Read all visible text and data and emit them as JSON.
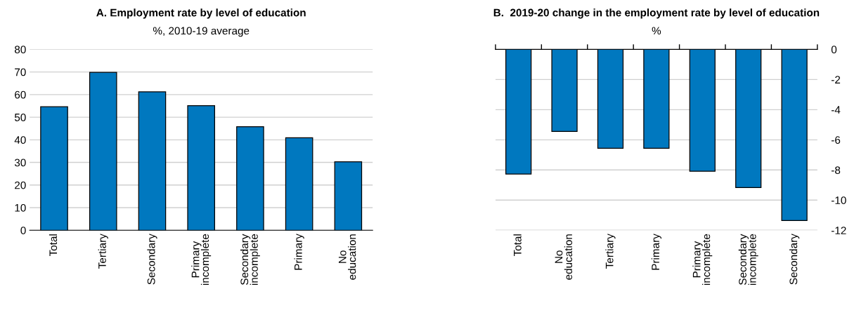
{
  "chart_data": [
    {
      "type": "bar",
      "title": "A. Employment rate by level of education",
      "subtitle": "%, 2010-19 average",
      "categories": [
        "Total",
        "Tertiary",
        "Secondary",
        "Primary\nincomplete",
        "Secondary\nincomplete",
        "Primary",
        "No\neducation"
      ],
      "values": [
        54.6,
        69.8,
        61.2,
        55.1,
        45.8,
        40.9,
        30.3
      ],
      "color": "#0078bf",
      "ylim": [
        0,
        80
      ],
      "yticks": [
        0,
        10,
        20,
        30,
        40,
        50,
        60,
        70,
        80
      ],
      "grid": "y"
    },
    {
      "type": "bar",
      "title": "B.  2019-20 change in the employment rate by level of education",
      "subtitle": "%",
      "categories": [
        "Total",
        "No\neducation",
        "Tertiary",
        "Primary",
        "Primary\nincomplete",
        "Secondary\nincomplete",
        "Secondary"
      ],
      "values": [
        -8.27,
        -5.44,
        -6.56,
        -6.56,
        -8.08,
        -9.17,
        -11.35
      ],
      "color": "#0078bf",
      "ylim": [
        -12,
        0
      ],
      "yticks": [
        -12,
        -10,
        -8,
        -6,
        -4,
        -2,
        0
      ],
      "grid": "y"
    }
  ]
}
